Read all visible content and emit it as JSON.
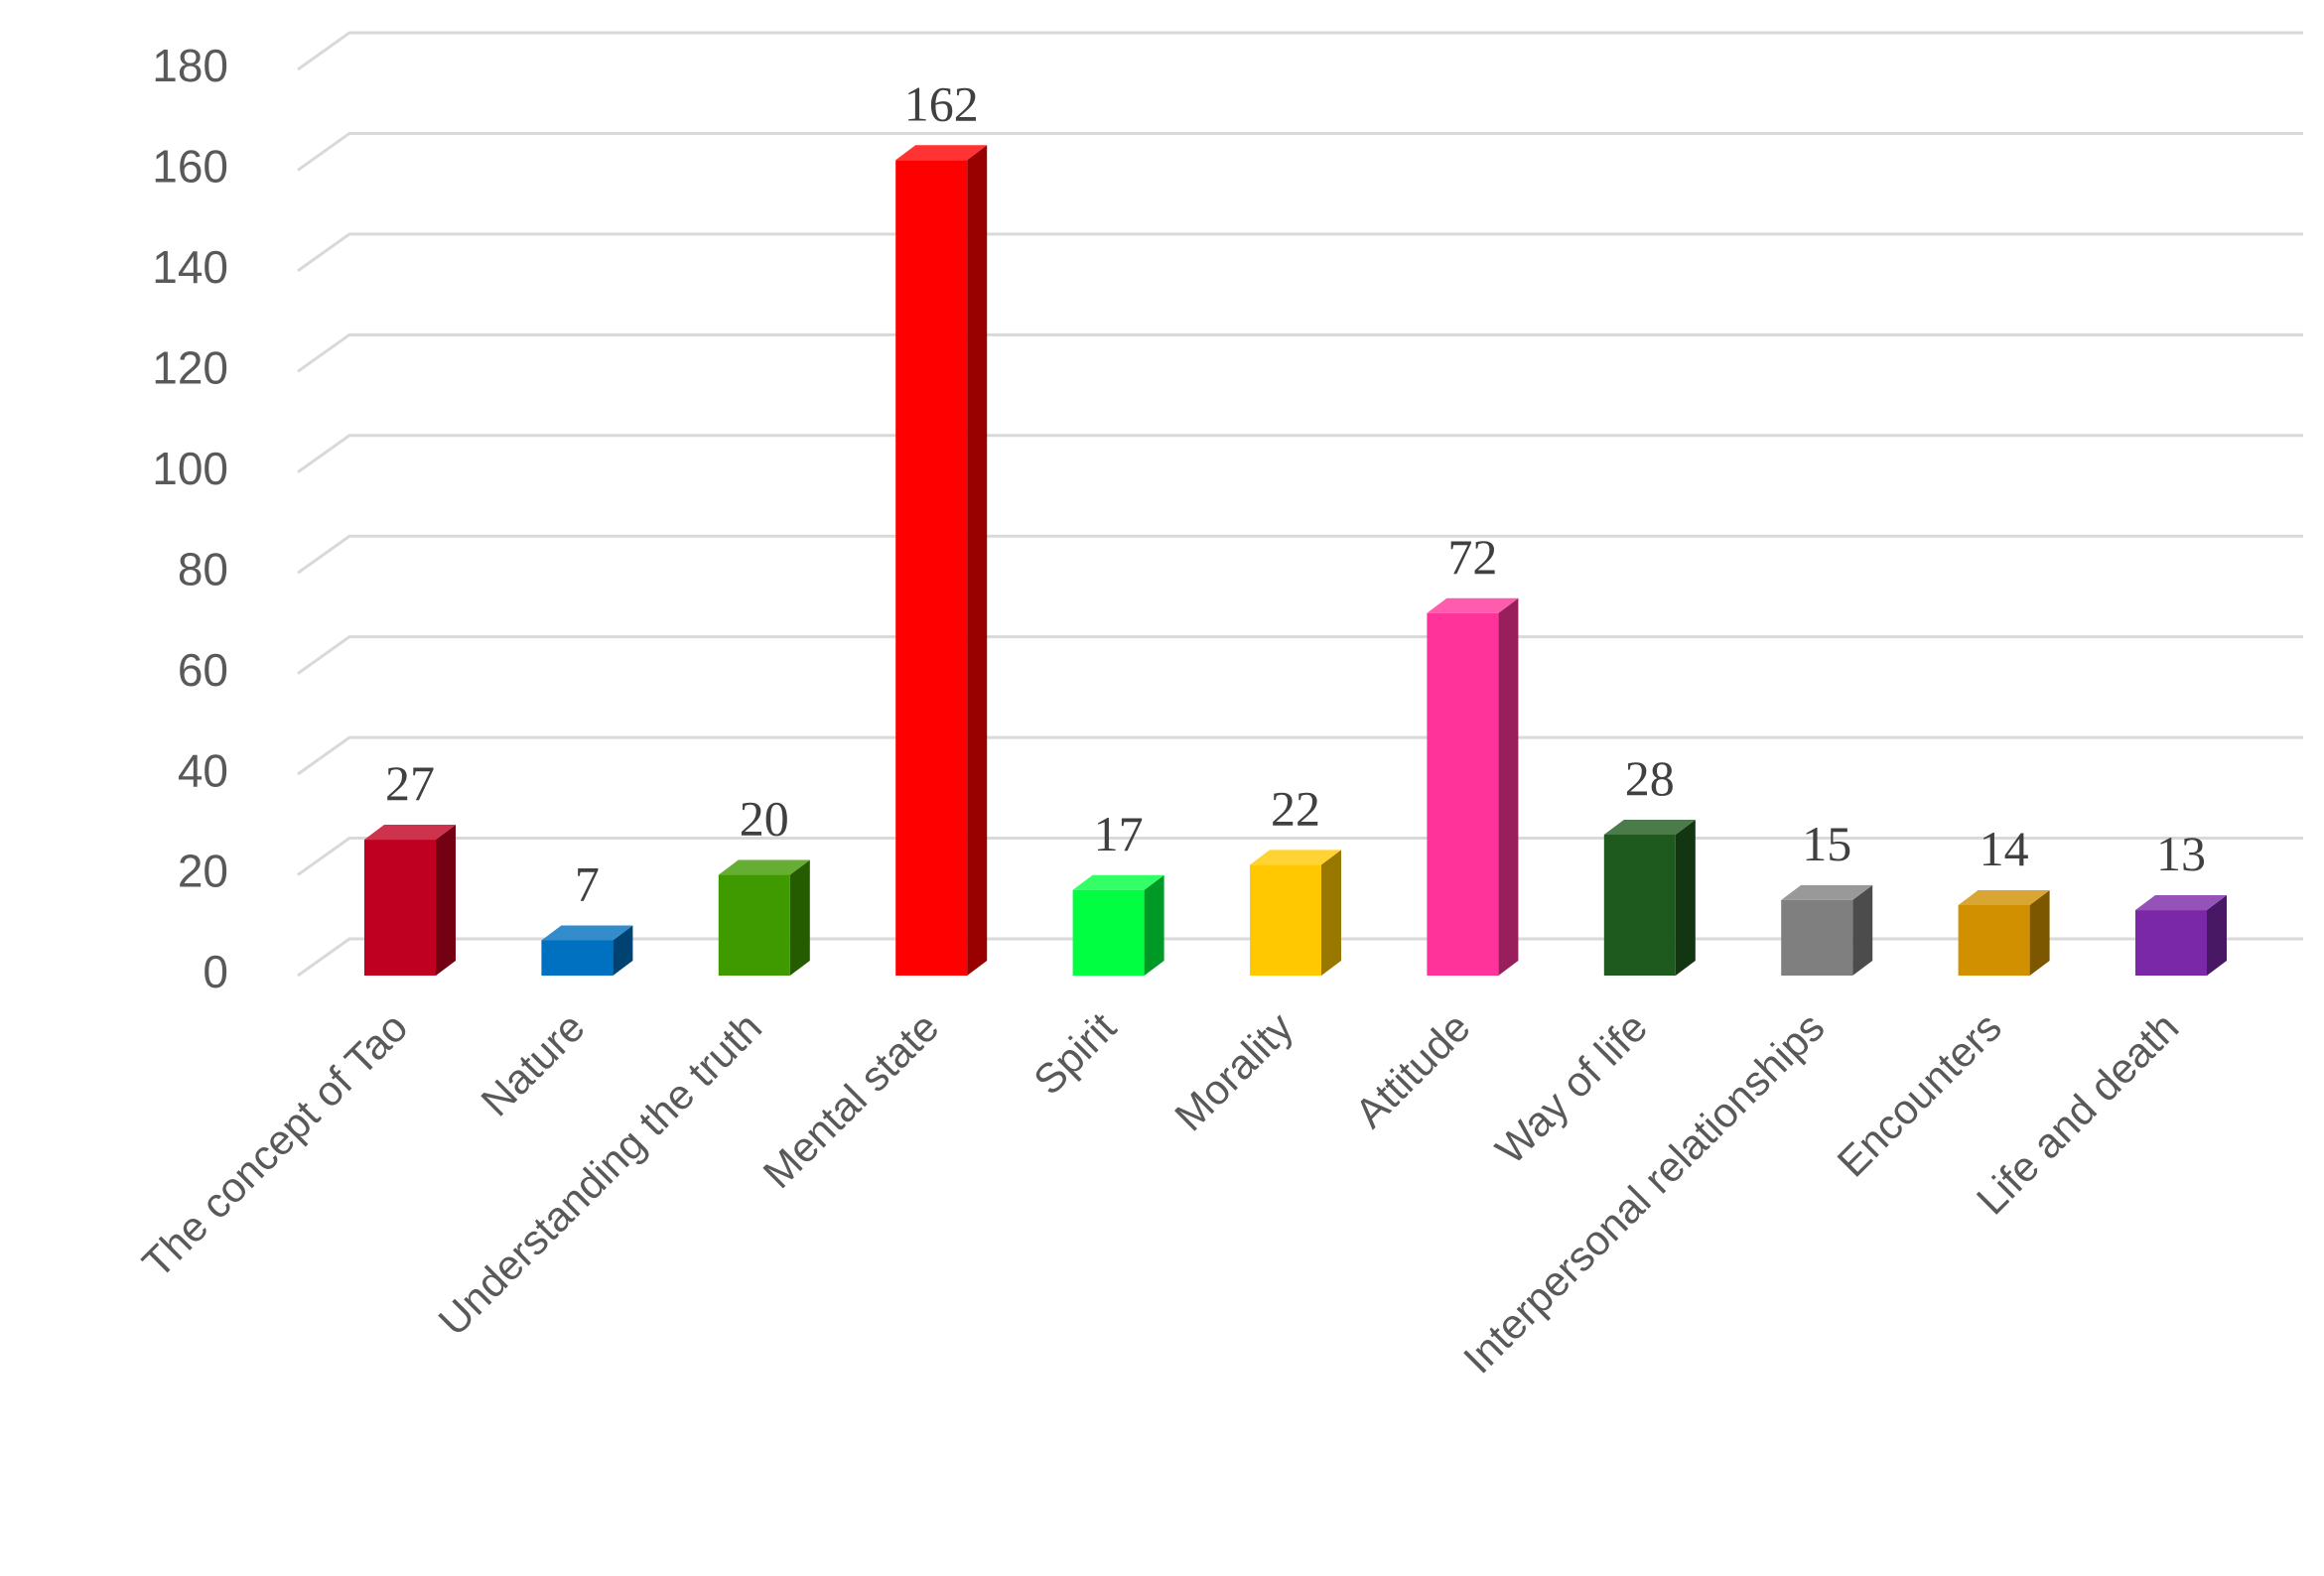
{
  "chart_data": {
    "type": "bar3d",
    "categories": [
      "The concept of Tao",
      "Nature",
      "Understanding the truth",
      "Mental state",
      "Spirit",
      "Morality",
      "Attitude",
      "Way of life",
      "Interpersonal relationships",
      "Encounters",
      "Life and death"
    ],
    "values": [
      27,
      7,
      20,
      162,
      17,
      22,
      72,
      28,
      15,
      14,
      13
    ],
    "colors": [
      "#c00020",
      "#0070c0",
      "#3f9a00",
      "#ff0000",
      "#00ff40",
      "#ffc800",
      "#ff3399",
      "#1e5a1e",
      "#7f7f7f",
      "#d09000",
      "#7a28a8"
    ],
    "ylim": [
      0,
      180
    ],
    "yticks": [
      0,
      20,
      40,
      60,
      80,
      100,
      120,
      140,
      160,
      180
    ],
    "grid": true
  }
}
